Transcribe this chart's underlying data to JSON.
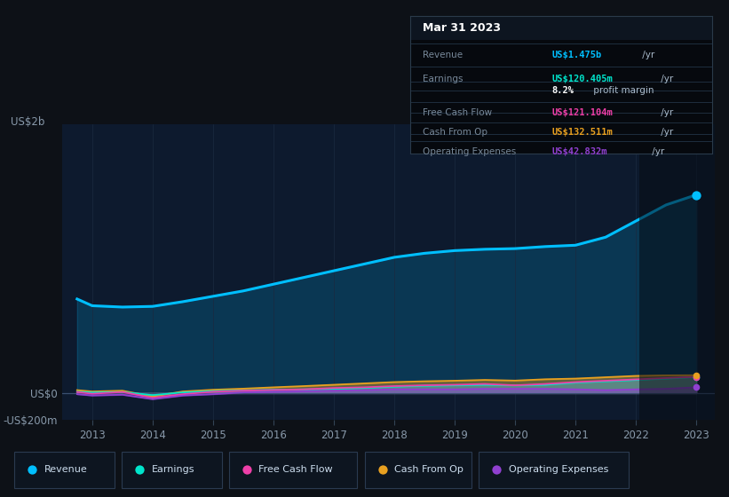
{
  "background_color": "#0d1117",
  "plot_bg_color": "#0d1a2e",
  "title": "Mar 31 2023",
  "years": [
    2012.75,
    2013,
    2013.5,
    2014,
    2014.5,
    2015,
    2015.5,
    2016,
    2016.5,
    2017,
    2017.5,
    2018,
    2018.5,
    2019,
    2019.5,
    2020,
    2020.5,
    2021,
    2021.5,
    2022,
    2022.5,
    2023
  ],
  "revenue": [
    700,
    650,
    640,
    645,
    680,
    720,
    760,
    810,
    860,
    910,
    960,
    1010,
    1040,
    1060,
    1070,
    1075,
    1090,
    1100,
    1160,
    1280,
    1400,
    1475
  ],
  "earnings": [
    10,
    5,
    8,
    -15,
    5,
    15,
    20,
    25,
    28,
    32,
    38,
    48,
    55,
    58,
    62,
    58,
    62,
    78,
    88,
    98,
    108,
    120
  ],
  "free_cash_flow": [
    8,
    -5,
    8,
    -35,
    -8,
    10,
    18,
    23,
    28,
    38,
    43,
    52,
    58,
    62,
    68,
    58,
    68,
    82,
    92,
    102,
    112,
    121
  ],
  "cash_from_op": [
    22,
    12,
    18,
    -25,
    12,
    25,
    33,
    43,
    52,
    62,
    72,
    82,
    88,
    92,
    98,
    93,
    103,
    108,
    118,
    128,
    132,
    133
  ],
  "operating_expenses": [
    -8,
    -18,
    -12,
    -45,
    -18,
    -8,
    5,
    10,
    14,
    18,
    22,
    28,
    28,
    28,
    32,
    32,
    32,
    28,
    22,
    28,
    32,
    43
  ],
  "revenue_color": "#00bfff",
  "earnings_color": "#00e5cc",
  "free_cash_flow_color": "#ee3fa8",
  "cash_from_op_color": "#e8a020",
  "operating_expenses_color": "#9040d0",
  "xlim": [
    2012.5,
    2023.3
  ],
  "ylim": [
    -200,
    2000
  ],
  "xticks": [
    2013,
    2014,
    2015,
    2016,
    2017,
    2018,
    2019,
    2020,
    2021,
    2022,
    2023
  ],
  "grid_color": "#1a2a40",
  "ytick_positions": [
    -200,
    0,
    2000
  ],
  "ytick_labels": [
    "-US$200m",
    "US$0",
    "US$2b"
  ],
  "info_bg": "#080c10",
  "info_header_bg": "#0a1020",
  "legend_item_bg": "#111827",
  "legend_item_border": "#2a3a50"
}
